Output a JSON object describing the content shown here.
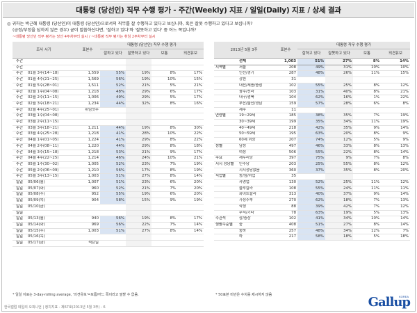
{
  "title": "대통령 (당선인) 직무 수행 평가 - 주간(Weekly) 지표 / 일일(Daily) 지표 / 상세 결과",
  "question": {
    "line1": "◎ 귀하는 박근혜 대통령 (당선인)이 대통령 (당선인)으로서의 직무를 잘 수행하고 있다고 보십니까, 혹은 잘못 수행하고 있다고 보십니까?",
    "line2": "(긍정/부정을 답하지 않은 경우) 굳이 말씀하신다면, '잘하고 있다'와 '잘못하고 있다' 중 어느 쪽입니까?"
  },
  "red_note": "~대통령 당선인 직무 평가는 당선 4주차부터 실시 / ~대통령 직무 평가는 취임 2주차부터 실시",
  "left": {
    "headers": {
      "col1": "조사 시기",
      "group": "대통령 (당선인) 직무 수행 평가",
      "sample": "표본수",
      "pos": "잘하고 있다",
      "neg": "잘못하고 있다",
      "normal": "보통",
      "dk": "의견유보"
    },
    "rows": [
      {
        "g": "주간",
        "p": "",
        "n": "",
        "a": "",
        "b": "",
        "c": "",
        "d": ""
      },
      {
        "g": "주간",
        "p": "",
        "n": "",
        "a": "",
        "b": "",
        "c": "",
        "d": ""
      },
      {
        "g": "주간",
        "p": "01월 3주(14~18)",
        "n": "1,559",
        "a": "55%",
        "b": "19%",
        "c": "8%",
        "d": "17%"
      },
      {
        "g": "주간",
        "p": "01월 4주(21~25)",
        "n": "1,569",
        "a": "56%",
        "b": "19%",
        "c": "10%",
        "d": "15%"
      },
      {
        "g": "주간",
        "p": "01월 5주(28~01)",
        "n": "1,511",
        "a": "52%",
        "b": "21%",
        "c": "5%",
        "d": "21%"
      },
      {
        "g": "주간",
        "p": "02월 1주(04~08)",
        "n": "1,218",
        "a": "48%",
        "b": "29%",
        "c": "6%",
        "d": "17%"
      },
      {
        "g": "주간",
        "p": "02월 2주(11~15)",
        "n": "1,006",
        "a": "49%",
        "b": "29%",
        "c": "5%",
        "d": "17%"
      },
      {
        "g": "주간",
        "p": "02월 3주(18~21)",
        "n": "1,234",
        "a": "44%",
        "b": "32%",
        "c": "8%",
        "d": "16%"
      },
      {
        "g": "주간",
        "p": "02월 4주(25~01)",
        "n": "취임첫주",
        "a": "",
        "b": "",
        "c": "",
        "d": ""
      },
      {
        "g": "주간",
        "p": "03월 1주(04~08)",
        "n": "",
        "a": "",
        "b": "",
        "c": "",
        "d": ""
      },
      {
        "g": "주간",
        "p": "03월 2주(11~15)",
        "n": "",
        "a": "",
        "b": "",
        "c": "",
        "d": ""
      },
      {
        "g": "주간",
        "p": "03월 3주(18~21)",
        "n": "1,211",
        "a": "44%",
        "b": "19%",
        "c": "8%",
        "d": "30%"
      },
      {
        "g": "주간",
        "p": "03월 4주(25~28)",
        "n": "1,218",
        "a": "41%",
        "b": "28%",
        "c": "10%",
        "d": "22%"
      },
      {
        "g": "주간",
        "p": "04월 1주(01~05)",
        "n": "1,224",
        "a": "41%",
        "b": "29%",
        "c": "8%",
        "d": "22%"
      },
      {
        "g": "주간",
        "p": "04월 2주(08~11)",
        "n": "1,220",
        "a": "44%",
        "b": "29%",
        "c": "8%",
        "d": "18%"
      },
      {
        "g": "주간",
        "p": "04월 3주(15~18)",
        "n": "1,218",
        "a": "53%",
        "b": "21%",
        "c": "9%",
        "d": "17%"
      },
      {
        "g": "주간",
        "p": "04월 4주(22~25)",
        "n": "1,214",
        "a": "46%",
        "b": "24%",
        "c": "10%",
        "d": "21%"
      },
      {
        "g": "주간",
        "p": "05월 1주(30~02)",
        "n": "1,005",
        "a": "52%",
        "b": "23%",
        "c": "7%",
        "d": "19%"
      },
      {
        "g": "주간",
        "p": "05월 2주(06~09)",
        "n": "1,210",
        "a": "56%",
        "b": "17%",
        "c": "8%",
        "d": "19%"
      },
      {
        "g": "주간",
        "p": "05월 3주(13~15)",
        "n": "1,003",
        "a": "51%",
        "c": "8%",
        "b": "27%",
        "d": "14%"
      },
      {
        "g": "일일",
        "p": "05/06(월)",
        "n": "1,007",
        "a": "51%",
        "b": "23%",
        "c": "6%",
        "d": "20%"
      },
      {
        "g": "일일",
        "p": "05/07(화)",
        "n": "960",
        "a": "52%",
        "b": "21%",
        "c": "7%",
        "d": "20%"
      },
      {
        "g": "일일",
        "p": "05/08(수)",
        "n": "952",
        "a": "55%",
        "b": "19%",
        "c": "6%",
        "d": "20%"
      },
      {
        "g": "일일",
        "p": "05/09(목)",
        "n": "904",
        "a": "58%",
        "b": "15%",
        "c": "9%",
        "d": "19%"
      },
      {
        "g": "일일",
        "p": "05/10(금)",
        "n": "",
        "a": "",
        "b": "",
        "c": "",
        "d": ""
      },
      {
        "g": "일일",
        "p": "",
        "n": "",
        "a": "",
        "b": "",
        "c": "",
        "d": ""
      },
      {
        "g": "일일",
        "p": "05/13(월)",
        "n": "940",
        "a": "56%",
        "b": "19%",
        "c": "8%",
        "d": "17%"
      },
      {
        "g": "일일",
        "p": "05/14(화)",
        "n": "969",
        "a": "56%",
        "b": "22%",
        "c": "7%",
        "d": "14%"
      },
      {
        "g": "일일",
        "p": "05/15(수)",
        "n": "1,003",
        "a": "51%",
        "b": "27%",
        "c": "8%",
        "d": "14%"
      },
      {
        "g": "일일",
        "p": "05/16(목)",
        "n": "",
        "a": "",
        "b": "",
        "c": "",
        "d": ""
      },
      {
        "g": "일일",
        "p": "05/17(금)",
        "n": "석탄일",
        "a": "",
        "b": "",
        "c": "",
        "d": ""
      }
    ]
  },
  "right": {
    "headers": {
      "period": "2013년 5월 3주",
      "group": "대통령 직무 수행 평가",
      "sample": "표본수",
      "pos": "잘하고 있다",
      "neg": "잘못하고 있다",
      "normal": "보통",
      "dk": "의견유보"
    },
    "rows": [
      {
        "g": "",
        "s": "전체",
        "n": "1,003",
        "a": "51%",
        "b": "27%",
        "c": "8%",
        "d": "14%",
        "total": true
      },
      {
        "g": "지역별",
        "s": "서울",
        "n": "208",
        "a": "49%",
        "b": "31%",
        "c": "10%",
        "d": "10%"
      },
      {
        "g": "",
        "s": "인천/경기",
        "n": "287",
        "a": "48%",
        "b": "26%",
        "c": "11%",
        "d": "15%"
      },
      {
        "g": "",
        "s": "강원",
        "n": "31",
        "a": "",
        "b": "",
        "c": "",
        "d": ""
      },
      {
        "g": "",
        "s": "대전/세종/충청",
        "n": "102",
        "a": "55%",
        "b": "25%",
        "c": "8%",
        "d": "12%"
      },
      {
        "g": "",
        "s": "광주/전라",
        "n": "103",
        "a": "31%",
        "b": "40%",
        "c": "8%",
        "d": "21%"
      },
      {
        "g": "",
        "s": "대구/경북",
        "n": "104",
        "a": "62%",
        "b": "16%",
        "c": "1%",
        "d": "22%"
      },
      {
        "g": "",
        "s": "부산/울산/경남",
        "n": "159",
        "a": "57%",
        "b": "28%",
        "c": "6%",
        "d": "8%"
      },
      {
        "g": "",
        "s": "제주",
        "n": "11",
        "a": "",
        "b": "",
        "c": "",
        "d": ""
      },
      {
        "g": "연령별",
        "s": "19~29세",
        "n": "185",
        "a": "38%",
        "b": "35%",
        "c": "7%",
        "d": "19%"
      },
      {
        "g": "",
        "s": "30~39세",
        "n": "199",
        "a": "35%",
        "b": "34%",
        "c": "11%",
        "d": "19%"
      },
      {
        "g": "",
        "s": "40~49세",
        "n": "218",
        "a": "42%",
        "b": "35%",
        "c": "9%",
        "d": "14%"
      },
      {
        "g": "",
        "s": "50~59세",
        "n": "195",
        "a": "63%",
        "b": "20%",
        "c": "8%",
        "d": "9%"
      },
      {
        "g": "",
        "s": "60세 이상",
        "n": "207",
        "a": "74%",
        "b": "12%",
        "c": "5%",
        "d": "9%"
      },
      {
        "g": "성별",
        "s": "남성",
        "n": "497",
        "a": "46%",
        "b": "33%",
        "c": "8%",
        "d": "13%"
      },
      {
        "g": "",
        "s": "여성",
        "n": "506",
        "a": "55%",
        "b": "22%",
        "c": "8%",
        "d": "14%"
      },
      {
        "g": "주요",
        "s": "새누리당",
        "n": "397",
        "a": "75%",
        "b": "9%",
        "c": "7%",
        "d": "8%"
      },
      {
        "g": "지지 정당별",
        "s": "민주당",
        "n": "203",
        "a": "25%",
        "b": "55%",
        "c": "8%",
        "d": "12%"
      },
      {
        "g": "",
        "s": "지지정당없음",
        "n": "360",
        "a": "37%",
        "b": "35%",
        "c": "8%",
        "d": "20%"
      },
      {
        "g": "직업별",
        "s": "농/임/어업",
        "n": "35",
        "a": "",
        "b": "",
        "c": "",
        "d": ""
      },
      {
        "g": "",
        "s": "자영업",
        "n": "130",
        "a": "52%",
        "b": "25%",
        "c": "11%",
        "d": "12%"
      },
      {
        "g": "",
        "s": "블루칼라",
        "n": "108",
        "a": "55%",
        "b": "24%",
        "c": "11%",
        "d": "11%"
      },
      {
        "g": "",
        "s": "화이트칼라",
        "n": "313",
        "a": "40%",
        "b": "37%",
        "c": "9%",
        "d": "14%"
      },
      {
        "g": "",
        "s": "가정주부",
        "n": "270",
        "a": "62%",
        "b": "18%",
        "c": "7%",
        "d": "13%"
      },
      {
        "g": "",
        "s": "학생",
        "n": "88",
        "a": "39%",
        "b": "42%",
        "c": "7%",
        "d": "12%"
      },
      {
        "g": "",
        "s": "무직/기타",
        "n": "78",
        "a": "63%",
        "b": "19%",
        "c": "5%",
        "d": "13%"
      },
      {
        "g": "주관적",
        "s": "상/중상",
        "n": "102",
        "a": "41%",
        "b": "34%",
        "c": "10%",
        "d": "14%"
      },
      {
        "g": "생활수준별",
        "s": "중",
        "n": "408",
        "a": "51%",
        "b": "27%",
        "c": "8%",
        "d": "14%"
      },
      {
        "g": "",
        "s": "중하",
        "n": "257",
        "a": "48%",
        "b": "34%",
        "c": "12%",
        "d": "7%"
      },
      {
        "g": "",
        "s": "하",
        "n": "217",
        "a": "58%",
        "b": "18%",
        "c": "5%",
        "d": "18%"
      }
    ]
  },
  "footnote_left": "* 일일 지표는 3-day-rolling average, '의견유보'=모름/어느 쪽이라고 말할 수 없음.",
  "footnote_right": "* 50표본 미만은 수치를 제시하지 않음",
  "source": "한국갤럽 데일리 오피니언 | 정치지표 - 제67호(2013년 5월 3주) - 6",
  "logo": "Gallup",
  "logo_sub": "KOREA"
}
